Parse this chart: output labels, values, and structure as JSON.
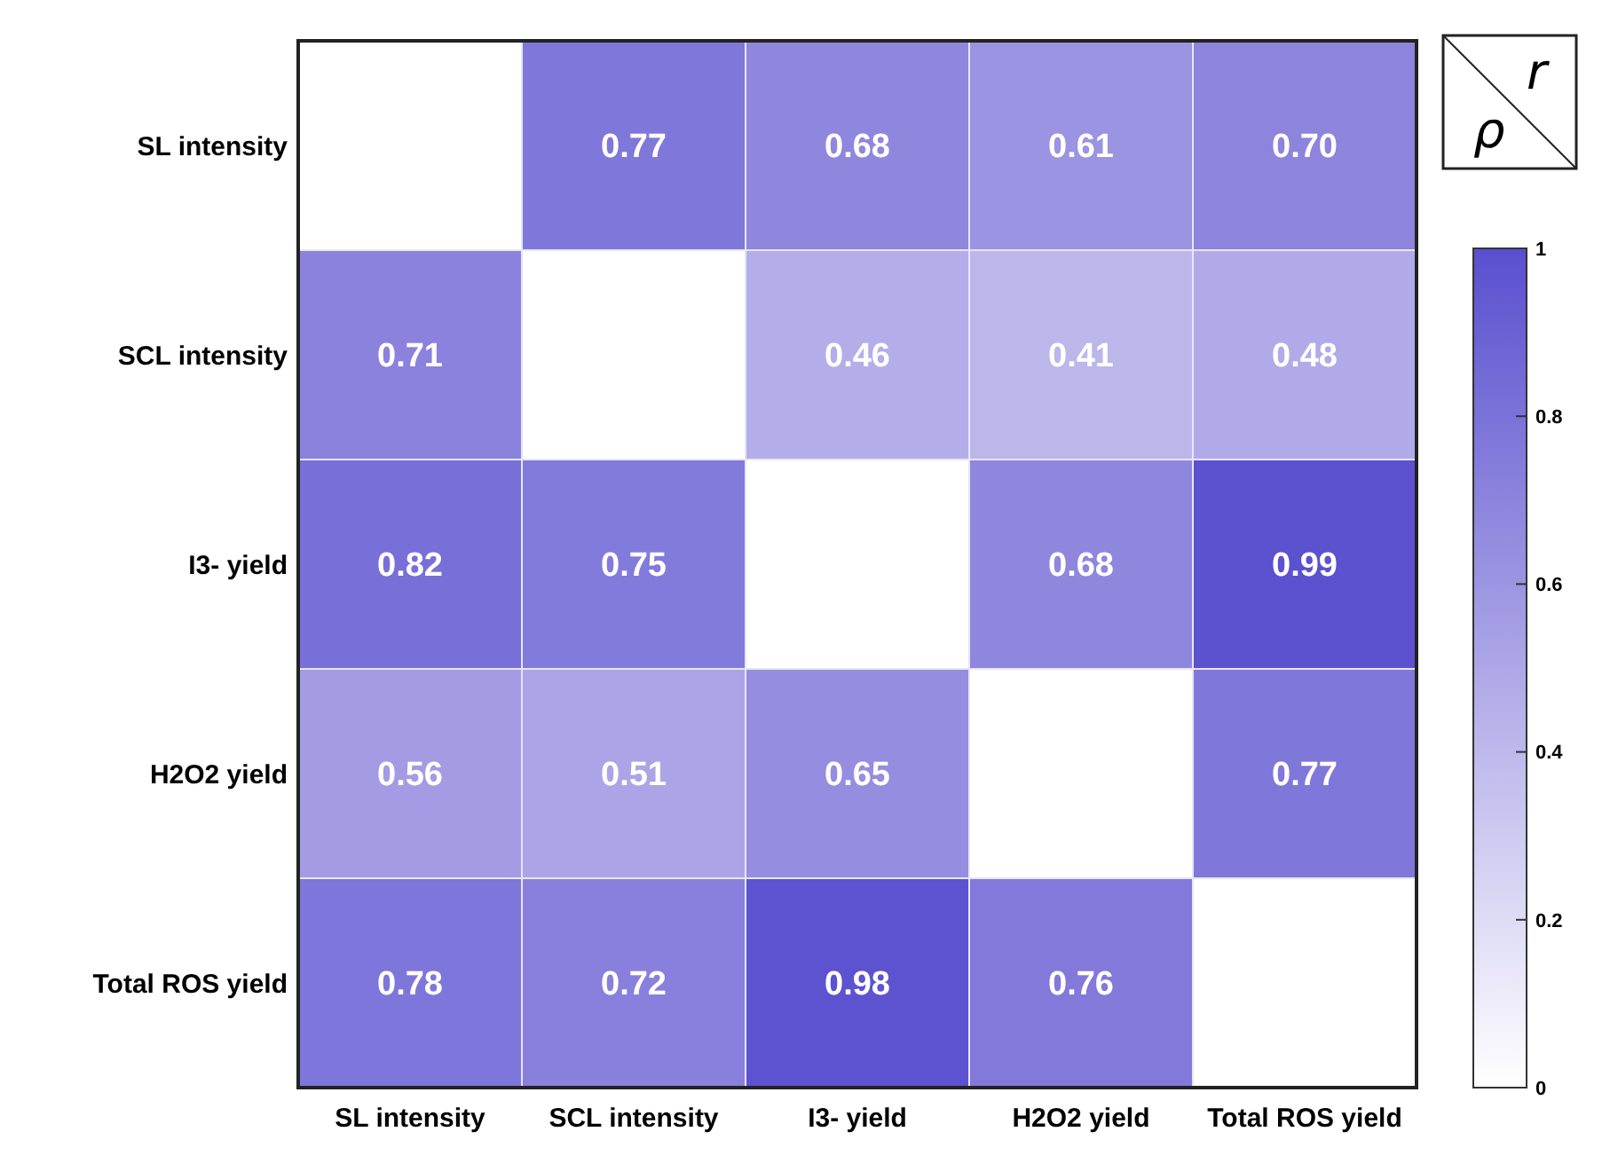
{
  "chart_data": {
    "type": "heatmap",
    "categories": [
      "SL intensity",
      "SCL intensity",
      "I3- yield",
      "H2O2 yield",
      "Total ROS yield"
    ],
    "y_categories": [
      "SL intensity",
      "SCL intensity",
      "I3- yield",
      "H2O2 yield",
      "Total ROS yield"
    ],
    "cells": [
      [
        null,
        0.77,
        0.68,
        0.61,
        0.7
      ],
      [
        0.71,
        null,
        0.46,
        0.41,
        0.48
      ],
      [
        0.82,
        0.75,
        null,
        0.68,
        0.99
      ],
      [
        0.56,
        0.51,
        0.65,
        null,
        0.77
      ],
      [
        0.78,
        0.72,
        0.98,
        0.76,
        null
      ]
    ],
    "cell_labels": [
      [
        null,
        "0.77",
        "0.68",
        "0.61",
        "0.70"
      ],
      [
        "0.71",
        null,
        "0.46",
        "0.41",
        "0.48"
      ],
      [
        "0.82",
        "0.75",
        null,
        "0.68",
        "0.99"
      ],
      [
        "0.56",
        "0.51",
        "0.65",
        null,
        "0.77"
      ],
      [
        "0.78",
        "0.72",
        "0.98",
        "0.76",
        null
      ]
    ],
    "data_labels": true,
    "clim": [
      0,
      1
    ],
    "cticks": [
      0,
      0.2,
      0.4,
      0.6,
      0.8,
      1
    ],
    "annotations": [
      "ρ",
      "r"
    ]
  }
}
